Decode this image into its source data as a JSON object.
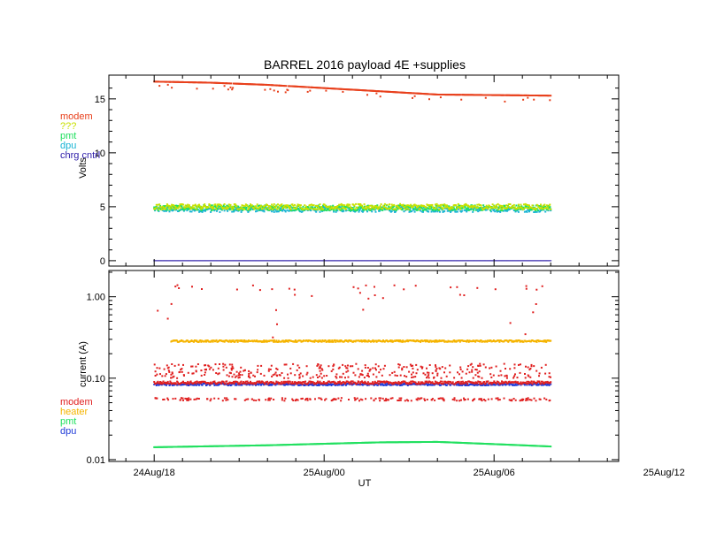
{
  "chart_data": [
    {
      "type": "scatter",
      "panel": "top",
      "title": "BARREL 2016 payload 4E +supplies",
      "ylabel": "Volts",
      "xlabel": "",
      "ylim": [
        -0.5,
        17.2
      ],
      "yscale": "linear",
      "yticks": [
        0,
        5,
        10,
        15
      ],
      "ytick_labels": [
        "0",
        "5",
        "10",
        "15"
      ],
      "x_hours_range": [
        -3.6,
        14.4
      ],
      "data_x_range": [
        -2.0,
        12.0
      ],
      "legend_placement": "left-outside",
      "grid": false,
      "series": [
        {
          "name": "modem",
          "color": "#e8401c",
          "trend": [
            [
              -2.0,
              16.6
            ],
            [
              0.0,
              16.5
            ],
            [
              2.0,
              16.3
            ],
            [
              4.0,
              16.0
            ],
            [
              6.0,
              15.7
            ],
            [
              8.0,
              15.4
            ],
            [
              10.0,
              15.35
            ],
            [
              12.0,
              15.3
            ]
          ]
        },
        {
          "name": "???",
          "color": "#c8e000",
          "value": 5.0
        },
        {
          "name": "pmt",
          "color": "#22e060",
          "value": 4.9
        },
        {
          "name": "dpu",
          "color": "#19b4d4",
          "value": 4.75
        },
        {
          "name": "chrg cntrl",
          "color": "#2a1aa8",
          "value": 0.0
        }
      ]
    },
    {
      "type": "scatter",
      "panel": "bottom",
      "ylabel": "current (A)",
      "xlabel": "UT",
      "yscale": "log",
      "ylim": [
        0.0095,
        2.1
      ],
      "yticks": [
        0.01,
        0.1,
        1.0
      ],
      "ytick_labels": [
        "0.01",
        "0.10",
        "1.00"
      ],
      "x_hours_range": [
        -3.6,
        14.4
      ],
      "xticks": [
        -2.0,
        4.0,
        10.0,
        16.0
      ],
      "xtick_labels": [
        "24Aug/18",
        "25Aug/00",
        "25Aug/06",
        "25Aug/12"
      ],
      "legend_placement": "left-outside",
      "grid": false,
      "series": [
        {
          "name": "modem",
          "color": "#e02020",
          "base": 0.088,
          "upper_scatter": [
            0.1,
            0.15
          ],
          "lower_band": 0.055,
          "spikes": 1.3
        },
        {
          "name": "heater",
          "color": "#f5b400",
          "value": 0.285,
          "start_x": -1.4
        },
        {
          "name": "pmt",
          "color": "#22e060",
          "trend": [
            [
              -2.0,
              0.0142
            ],
            [
              2.0,
              0.015
            ],
            [
              6.0,
              0.0163
            ],
            [
              8.0,
              0.0165
            ],
            [
              10.0,
              0.0155
            ],
            [
              12.0,
              0.0145
            ]
          ]
        },
        {
          "name": "dpu",
          "color": "#1f3ad8",
          "value": 0.084
        }
      ]
    }
  ]
}
